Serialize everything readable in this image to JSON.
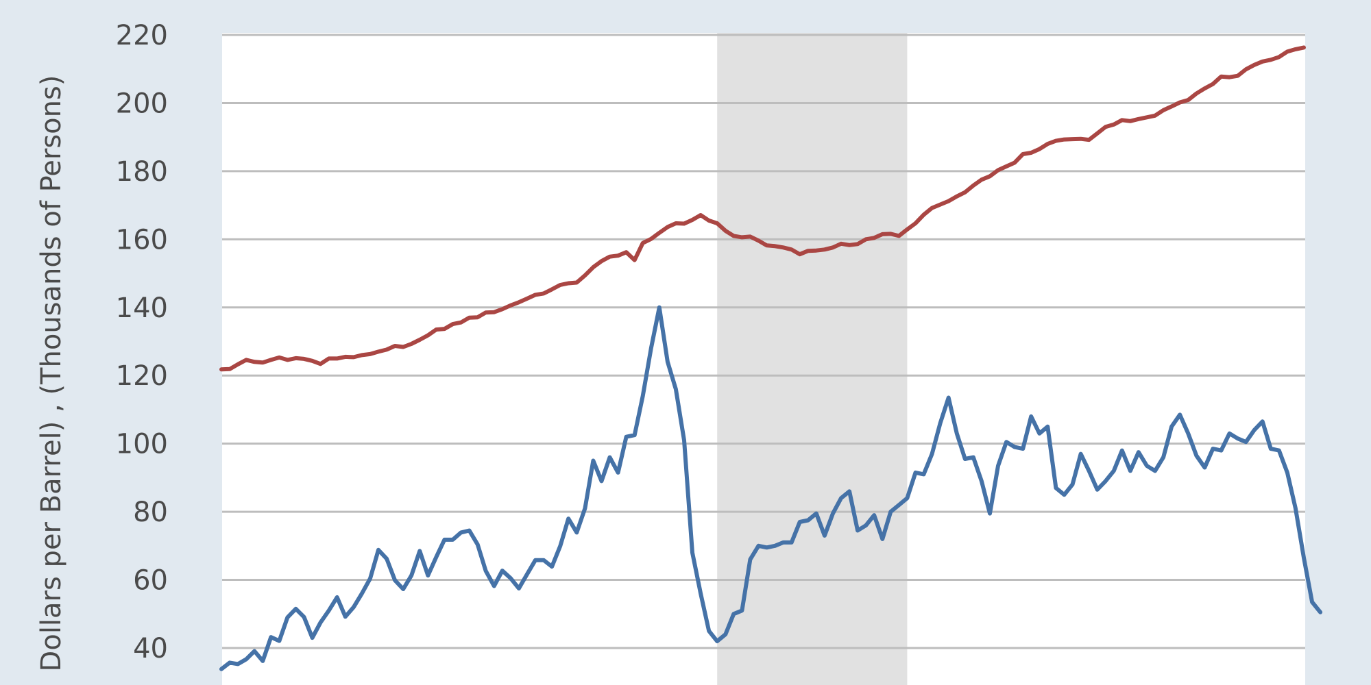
{
  "chart_data": {
    "type": "line",
    "title": "",
    "xlabel": "",
    "ylabel": "Dollars per Barrel) , (Thousands of Persons)",
    "ylim": [
      30,
      223
    ],
    "yticks": [
      40,
      60,
      80,
      100,
      120,
      140,
      160,
      180,
      200,
      220
    ],
    "grid": true,
    "shaded_region": {
      "start_index": 60,
      "end_index": 83,
      "color": "#e1e1e1"
    },
    "series": [
      {
        "color": "#aa4643",
        "values": [
          121.8,
          121.9,
          123.3,
          124.6,
          124.0,
          123.8,
          124.6,
          125.3,
          124.6,
          125.1,
          124.9,
          124.3,
          123.4,
          125.0,
          125.0,
          125.5,
          125.4,
          126.0,
          126.3,
          127.0,
          127.6,
          128.7,
          128.4,
          129.3,
          130.5,
          131.8,
          133.5,
          133.7,
          135.1,
          135.6,
          137.0,
          137.1,
          138.5,
          138.6,
          139.5,
          140.6,
          141.5,
          142.6,
          143.7,
          144.1,
          145.3,
          146.6,
          147.1,
          147.3,
          149.4,
          151.8,
          153.6,
          154.9,
          155.2,
          156.2,
          153.9,
          158.9,
          160.1,
          161.9,
          163.6,
          164.7,
          164.6,
          165.7,
          167.1,
          165.5,
          164.7,
          162.5,
          161.0,
          160.6,
          160.8,
          159.6,
          158.2,
          158.0,
          157.6,
          157.0,
          155.6,
          156.6,
          156.7,
          157.0,
          157.6,
          158.7,
          158.3,
          158.6,
          160.0,
          160.4,
          161.5,
          161.6,
          161.0,
          162.9,
          164.7,
          167.2,
          169.2,
          170.2,
          171.2,
          172.6,
          173.8,
          175.8,
          177.5,
          178.5,
          180.3,
          181.4,
          182.5,
          185.0,
          185.4,
          186.5,
          188.0,
          188.9,
          189.3,
          189.4,
          189.5,
          189.2,
          191.1,
          193.0,
          193.7,
          195.0,
          194.7,
          195.3,
          195.8,
          196.3,
          197.9,
          199.0,
          200.2,
          200.9,
          202.8,
          204.3,
          205.6,
          207.8,
          207.6,
          208.0,
          209.9,
          211.2,
          212.2,
          212.7,
          213.5,
          215.1,
          215.8,
          216.3
        ]
      },
      {
        "color": "#4572a7",
        "values": [
          33.8,
          35.7,
          35.3,
          36.7,
          39.1,
          36.2,
          43.2,
          42.1,
          49.0,
          51.5,
          49.1,
          43.0,
          47.5,
          51.0,
          54.9,
          49.2,
          52.0,
          56.0,
          60.4,
          68.8,
          66.2,
          59.9,
          57.3,
          61.3,
          68.5,
          61.3,
          66.7,
          71.8,
          71.8,
          73.9,
          74.5,
          70.4,
          62.6,
          58.2,
          62.7,
          60.5,
          57.5,
          61.7,
          65.8,
          65.8,
          63.9,
          69.9,
          78.0,
          73.9,
          81.0,
          95.0,
          89.0,
          96.0,
          91.5,
          102.0,
          102.5,
          114.0,
          128.0,
          140.0,
          124.0,
          116.0,
          101.0,
          68.0,
          56.0,
          45.0,
          42.0,
          44.0,
          50.0,
          51.0,
          66.0,
          70.0,
          69.5,
          70.0,
          71.0,
          71.0,
          77.0,
          77.5,
          79.5,
          73.0,
          79.5,
          84.0,
          86.0,
          74.5,
          76.0,
          79.0,
          72.0,
          80.0,
          82.0,
          84.0,
          91.5,
          91.0,
          97.0,
          106.0,
          113.5,
          103.0,
          95.5,
          96.0,
          89.0,
          79.5,
          93.5,
          100.5,
          99.0,
          98.5,
          108.0,
          103.0,
          105.0,
          87.0,
          85.0,
          88.0,
          97.0,
          92.0,
          86.5,
          89.0,
          92.0,
          98.0,
          92.0,
          97.5,
          93.5,
          92.0,
          96.0,
          105.0,
          108.5,
          103.0,
          96.5,
          93.0,
          98.5,
          98.0,
          103.0,
          101.5,
          100.5,
          104.0,
          106.5,
          98.5,
          98.0,
          91.5,
          81.0,
          66.5,
          53.5,
          50.5
        ]
      }
    ]
  }
}
